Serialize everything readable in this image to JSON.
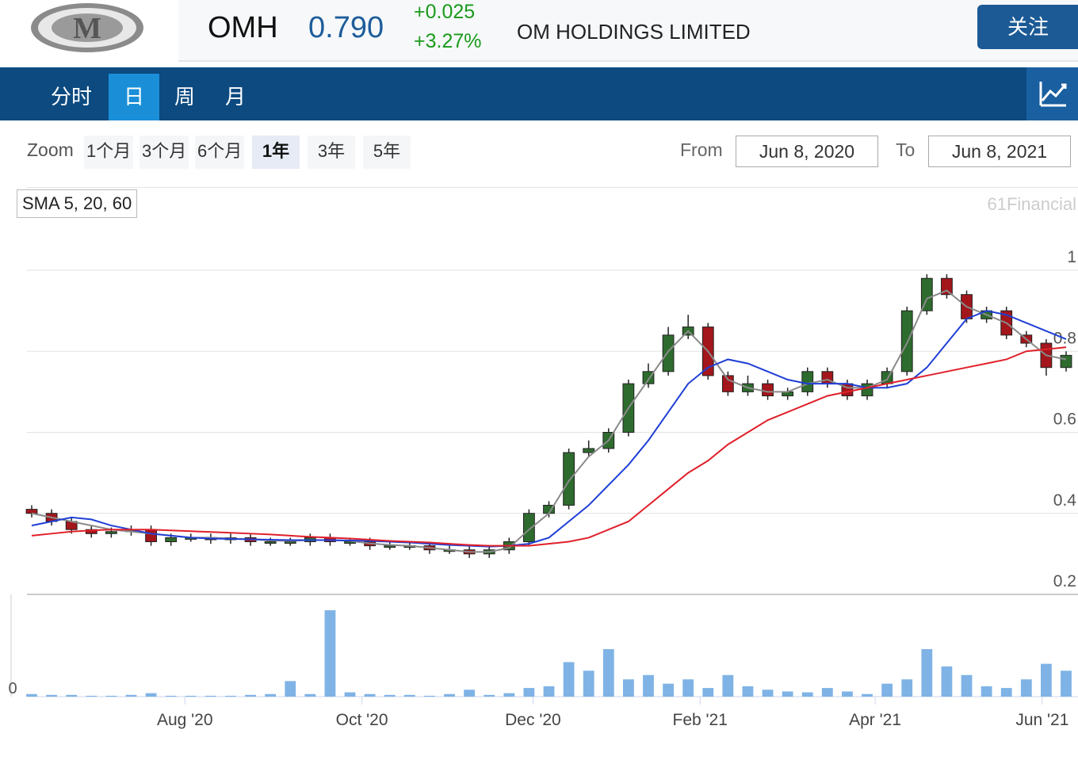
{
  "header": {
    "logo_text": "M",
    "symbol": "OMH",
    "price": "0.790",
    "change": "+0.025",
    "change_pct": "+3.27%",
    "company": "OM HOLDINGS LIMITED",
    "follow": "关注"
  },
  "tabs": {
    "items": [
      "分时",
      "日",
      "周",
      "月"
    ],
    "active": 1
  },
  "zoom": {
    "label": "Zoom",
    "items": [
      "1个月",
      "3个月",
      "6个月",
      "1年",
      "3年",
      "5年"
    ],
    "active": 3,
    "from_label": "From",
    "from": "Jun 8, 2020",
    "to_label": "To",
    "to": "Jun 8, 2021"
  },
  "indicator": "SMA 5, 20, 60",
  "watermark": "61Financial",
  "chart_data": {
    "type": "candlestick",
    "xlim": [
      0,
      52
    ],
    "xticks": [
      {
        "value": 7.7,
        "label": "Aug '20"
      },
      {
        "value": 16.6,
        "label": "Oct '20"
      },
      {
        "value": 25.2,
        "label": "Dec '20"
      },
      {
        "value": 33.6,
        "label": "Feb '21"
      },
      {
        "value": 42.4,
        "label": "Apr '21"
      },
      {
        "value": 50.8,
        "label": "Jun '21"
      }
    ],
    "ylim": [
      0.2,
      1
    ],
    "yticks": [
      0.2,
      0.4,
      0.6,
      0.8,
      1
    ],
    "grid": true,
    "up_color": "#2e6b2e",
    "down_color": "#a3161c",
    "open": [
      0.41,
      0.4,
      0.38,
      0.36,
      0.35,
      0.355,
      0.36,
      0.33,
      0.34,
      0.34,
      0.335,
      0.34,
      0.33,
      0.33,
      0.33,
      0.34,
      0.33,
      0.33,
      0.32,
      0.32,
      0.32,
      0.31,
      0.31,
      0.3,
      0.31,
      0.33,
      0.4,
      0.42,
      0.55,
      0.56,
      0.6,
      0.72,
      0.75,
      0.84,
      0.86,
      0.74,
      0.7,
      0.72,
      0.69,
      0.7,
      0.75,
      0.72,
      0.69,
      0.72,
      0.75,
      0.9,
      0.98,
      0.94,
      0.88,
      0.9,
      0.84,
      0.82,
      0.76
    ],
    "high": [
      0.42,
      0.41,
      0.39,
      0.37,
      0.365,
      0.37,
      0.37,
      0.35,
      0.35,
      0.35,
      0.35,
      0.35,
      0.34,
      0.34,
      0.35,
      0.35,
      0.34,
      0.34,
      0.33,
      0.33,
      0.33,
      0.32,
      0.32,
      0.32,
      0.34,
      0.41,
      0.43,
      0.56,
      0.58,
      0.61,
      0.73,
      0.77,
      0.86,
      0.89,
      0.87,
      0.75,
      0.74,
      0.73,
      0.71,
      0.76,
      0.76,
      0.73,
      0.73,
      0.76,
      0.91,
      0.99,
      0.99,
      0.95,
      0.91,
      0.91,
      0.85,
      0.83,
      0.8
    ],
    "low": [
      0.39,
      0.37,
      0.35,
      0.34,
      0.34,
      0.345,
      0.32,
      0.32,
      0.33,
      0.325,
      0.325,
      0.32,
      0.32,
      0.32,
      0.32,
      0.32,
      0.32,
      0.31,
      0.31,
      0.31,
      0.3,
      0.3,
      0.29,
      0.29,
      0.3,
      0.32,
      0.39,
      0.41,
      0.54,
      0.55,
      0.59,
      0.71,
      0.74,
      0.83,
      0.73,
      0.69,
      0.69,
      0.68,
      0.68,
      0.69,
      0.71,
      0.68,
      0.68,
      0.71,
      0.74,
      0.89,
      0.93,
      0.87,
      0.87,
      0.83,
      0.81,
      0.74,
      0.75
    ],
    "close": [
      0.4,
      0.38,
      0.36,
      0.35,
      0.355,
      0.36,
      0.33,
      0.34,
      0.34,
      0.335,
      0.34,
      0.33,
      0.33,
      0.33,
      0.34,
      0.33,
      0.33,
      0.32,
      0.32,
      0.32,
      0.31,
      0.31,
      0.3,
      0.31,
      0.33,
      0.4,
      0.42,
      0.55,
      0.56,
      0.6,
      0.72,
      0.75,
      0.84,
      0.86,
      0.74,
      0.7,
      0.72,
      0.69,
      0.7,
      0.75,
      0.72,
      0.69,
      0.72,
      0.75,
      0.9,
      0.98,
      0.94,
      0.88,
      0.9,
      0.84,
      0.82,
      0.76,
      0.79
    ],
    "series": [
      {
        "color": "#8a8a8a",
        "values": [
          0.4,
          0.39,
          0.38,
          0.37,
          0.36,
          0.355,
          0.35,
          0.345,
          0.34,
          0.34,
          0.338,
          0.336,
          0.333,
          0.332,
          0.334,
          0.334,
          0.332,
          0.326,
          0.322,
          0.32,
          0.315,
          0.31,
          0.305,
          0.305,
          0.315,
          0.36,
          0.4,
          0.48,
          0.54,
          0.58,
          0.66,
          0.73,
          0.8,
          0.85,
          0.8,
          0.73,
          0.71,
          0.7,
          0.7,
          0.72,
          0.73,
          0.71,
          0.71,
          0.73,
          0.82,
          0.93,
          0.95,
          0.91,
          0.89,
          0.87,
          0.83,
          0.79,
          0.78
        ]
      },
      {
        "color": "#1f3fd6",
        "values": [
          0.37,
          0.38,
          0.39,
          0.385,
          0.37,
          0.36,
          0.35,
          0.345,
          0.34,
          0.338,
          0.337,
          0.336,
          0.335,
          0.334,
          0.334,
          0.334,
          0.333,
          0.332,
          0.33,
          0.328,
          0.325,
          0.322,
          0.32,
          0.318,
          0.32,
          0.325,
          0.34,
          0.38,
          0.42,
          0.47,
          0.52,
          0.58,
          0.65,
          0.72,
          0.76,
          0.78,
          0.77,
          0.75,
          0.73,
          0.72,
          0.72,
          0.72,
          0.71,
          0.71,
          0.72,
          0.76,
          0.82,
          0.88,
          0.9,
          0.89,
          0.87,
          0.85,
          0.83
        ]
      },
      {
        "color": "#e0202a",
        "values": [
          0.345,
          0.35,
          0.355,
          0.358,
          0.36,
          0.36,
          0.36,
          0.358,
          0.356,
          0.354,
          0.352,
          0.35,
          0.348,
          0.345,
          0.342,
          0.34,
          0.338,
          0.335,
          0.332,
          0.33,
          0.328,
          0.325,
          0.322,
          0.32,
          0.32,
          0.32,
          0.325,
          0.33,
          0.34,
          0.36,
          0.38,
          0.42,
          0.46,
          0.5,
          0.53,
          0.57,
          0.6,
          0.63,
          0.65,
          0.67,
          0.69,
          0.7,
          0.71,
          0.72,
          0.73,
          0.74,
          0.75,
          0.76,
          0.77,
          0.78,
          0.8,
          0.805,
          0.81
        ]
      }
    ],
    "volume": {
      "color": "#7fb3e6",
      "ylim": [
        0,
        100
      ],
      "yticks": [
        0
      ],
      "values": [
        3,
        2,
        2,
        1,
        1,
        2,
        4,
        1,
        1,
        1,
        1,
        2,
        3,
        18,
        3,
        100,
        5,
        3,
        2,
        2,
        1,
        3,
        8,
        2,
        4,
        10,
        12,
        40,
        30,
        55,
        20,
        25,
        15,
        20,
        10,
        25,
        12,
        8,
        6,
        5,
        10,
        6,
        3,
        15,
        20,
        55,
        35,
        25,
        12,
        10,
        20,
        38,
        30
      ]
    }
  }
}
